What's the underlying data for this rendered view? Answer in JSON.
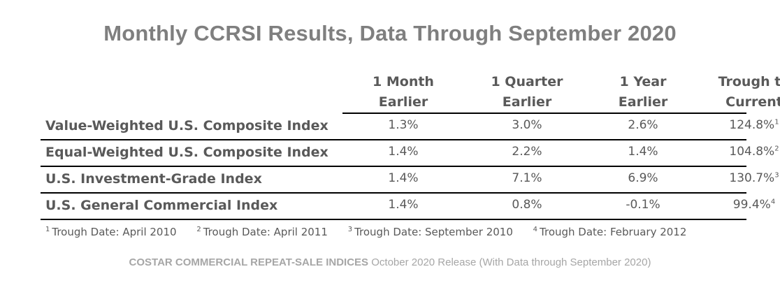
{
  "title": "Monthly CCRSI Results, Data Through September 2020",
  "table": {
    "headers": [
      {
        "line1": "1 Month",
        "line2": "Earlier"
      },
      {
        "line1": "1 Quarter",
        "line2": "Earlier"
      },
      {
        "line1": "1 Year",
        "line2": "Earlier"
      },
      {
        "line1": "Trough to",
        "line2": "Current"
      }
    ],
    "rows": [
      {
        "label": "Value-Weighted U.S. Composite Index",
        "m1": "1.3%",
        "q1": "3.0%",
        "y1": "2.6%",
        "trough": "124.8%",
        "note": "1"
      },
      {
        "label": "Equal-Weighted U.S. Composite Index",
        "m1": "1.4%",
        "q1": "2.2%",
        "y1": "1.4%",
        "trough": "104.8%",
        "note": "2"
      },
      {
        "label": "U.S. Investment-Grade Index",
        "m1": "1.4%",
        "q1": "7.1%",
        "y1": "6.9%",
        "trough": "130.7%",
        "note": "3"
      },
      {
        "label": "U.S. General Commercial Index",
        "m1": "1.4%",
        "q1": "0.8%",
        "y1": "-0.1%",
        "trough": "99.4%",
        "note": "4"
      }
    ]
  },
  "footnotes": [
    {
      "num": "1",
      "text": "Trough Date: April 2010"
    },
    {
      "num": "2",
      "text": "Trough Date: April 2011"
    },
    {
      "num": "3",
      "text": "Trough Date: September 2010"
    },
    {
      "num": "4",
      "text": "Trough Date: February 2012"
    }
  ],
  "source": {
    "bold": "COSTAR COMMERCIAL REPEAT-SALE INDICES",
    "rest": " October 2020 Release (With Data through September 2020)"
  }
}
